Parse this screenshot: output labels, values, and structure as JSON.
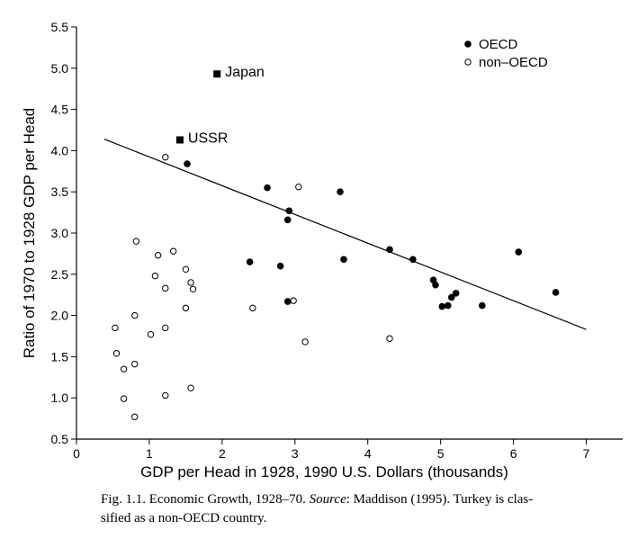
{
  "chart_data": {
    "type": "scatter",
    "xlabel": "GDP per Head in 1928, 1990 U.S. Dollars (thousands)",
    "ylabel": "Ratio of 1970 to 1928 GDP per Head",
    "xlim": [
      0,
      7.5
    ],
    "ylim": [
      0.5,
      5.5
    ],
    "xticks": [
      "0",
      "1",
      "2",
      "3",
      "4",
      "5",
      "6",
      "7"
    ],
    "xtick_values": [
      0,
      1,
      2,
      3,
      4,
      5,
      6,
      7
    ],
    "yticks": [
      "0.5",
      "1.0",
      "1.5",
      "2.0",
      "2.5",
      "3.0",
      "3.5",
      "4.0",
      "4.5",
      "5.0",
      "5.5"
    ],
    "ytick_values": [
      0.5,
      1.0,
      1.5,
      2.0,
      2.5,
      3.0,
      3.5,
      4.0,
      4.5,
      5.0,
      5.5
    ],
    "grid": false,
    "legend_position": "top-right",
    "series": [
      {
        "name": "OECD",
        "marker": "filled-circle",
        "color": "#000000",
        "points": [
          [
            1.52,
            3.84
          ],
          [
            2.62,
            3.55
          ],
          [
            2.38,
            2.65
          ],
          [
            2.8,
            2.6
          ],
          [
            2.92,
            3.27
          ],
          [
            2.9,
            3.16
          ],
          [
            2.9,
            2.17
          ],
          [
            3.62,
            3.5
          ],
          [
            3.67,
            2.68
          ],
          [
            4.3,
            2.8
          ],
          [
            4.62,
            2.68
          ],
          [
            4.9,
            2.43
          ],
          [
            4.93,
            2.37
          ],
          [
            5.02,
            2.11
          ],
          [
            5.1,
            2.12
          ],
          [
            5.15,
            2.22
          ],
          [
            5.21,
            2.27
          ],
          [
            5.57,
            2.12
          ],
          [
            6.07,
            2.77
          ],
          [
            6.58,
            2.28
          ]
        ]
      },
      {
        "name": "non–OECD",
        "marker": "open-circle",
        "color": "#000000",
        "points": [
          [
            1.22,
            3.92
          ],
          [
            3.05,
            3.56
          ],
          [
            0.82,
            2.9
          ],
          [
            1.12,
            2.73
          ],
          [
            1.33,
            2.78
          ],
          [
            1.08,
            2.48
          ],
          [
            1.5,
            2.56
          ],
          [
            1.57,
            2.4
          ],
          [
            1.22,
            2.33
          ],
          [
            1.6,
            2.32
          ],
          [
            1.5,
            2.09
          ],
          [
            2.42,
            2.09
          ],
          [
            2.98,
            2.18
          ],
          [
            0.8,
            2.0
          ],
          [
            0.53,
            1.85
          ],
          [
            1.02,
            1.77
          ],
          [
            1.22,
            1.85
          ],
          [
            3.14,
            1.68
          ],
          [
            4.3,
            1.72
          ],
          [
            0.55,
            1.54
          ],
          [
            0.8,
            1.41
          ],
          [
            0.65,
            1.35
          ],
          [
            1.57,
            1.12
          ],
          [
            1.22,
            1.03
          ],
          [
            0.65,
            0.99
          ],
          [
            0.8,
            0.77
          ]
        ]
      }
    ],
    "annotated_points": [
      {
        "label": "Japan",
        "x": 1.93,
        "y": 4.93,
        "marker": "filled-square"
      },
      {
        "label": "USSR",
        "x": 1.42,
        "y": 4.13,
        "marker": "filled-square"
      }
    ],
    "trend_line": {
      "x": [
        0.38,
        7.0
      ],
      "y": [
        4.14,
        1.83
      ]
    }
  },
  "caption": {
    "prefix": "Fig. 1.1. Economic Growth, 1928–70. ",
    "source_label": "Source",
    "rest": ": Maddison (1995). Turkey is clas-",
    "line2": "sified as a non-OECD country."
  }
}
